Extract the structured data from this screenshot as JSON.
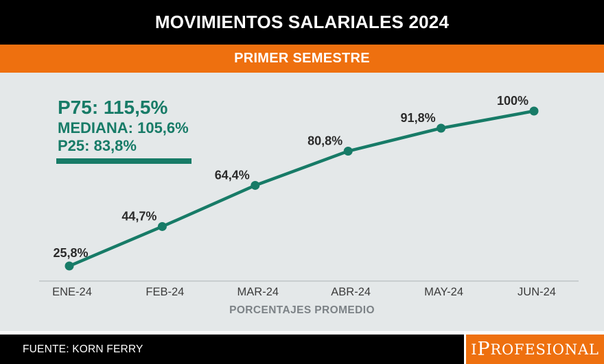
{
  "header": {
    "title": "MOVIMIENTOS SALARIALES 2024",
    "subtitle": "PRIMER SEMESTRE"
  },
  "legend": {
    "p75": "P75: 115,5%",
    "mediana": "MEDIANA: 105,6%",
    "p25": "P25: 83,8%"
  },
  "chart_data": {
    "type": "line",
    "title": "MOVIMIENTOS SALARIALES 2024",
    "subtitle": "PRIMER SEMESTRE",
    "categories": [
      "ENE-24",
      "FEB-24",
      "MAR-24",
      "ABR-24",
      "MAY-24",
      "JUN-24"
    ],
    "values": [
      25.8,
      44.7,
      64.4,
      80.8,
      91.8,
      100
    ],
    "point_labels": [
      "25,8%",
      "44,7%",
      "64,4%",
      "80,8%",
      "91,8%",
      "100%"
    ],
    "xlabel": "PORCENTAJES PROMEDIO",
    "ylabel": "",
    "ylim": [
      0,
      110
    ],
    "grid": false,
    "legend_position": "top-left",
    "annotations": [
      "P75: 115,5%",
      "MEDIANA: 105,6%",
      "P25: 83,8%"
    ],
    "colors": {
      "line": "#177b67",
      "point": "#177b67",
      "point_label": "#2b2b2b",
      "axis_line": "#c8cdcf",
      "tick_label": "#3b3b3b",
      "xlabel_text": "#7c8286",
      "accent_orange": "#ee700f",
      "background": "#e4e8e9"
    }
  },
  "footer": {
    "source": "FUENTE: KORN FERRY",
    "brand": {
      "i": "I",
      "p": "P",
      "rest": "ROFESIONAL"
    }
  }
}
